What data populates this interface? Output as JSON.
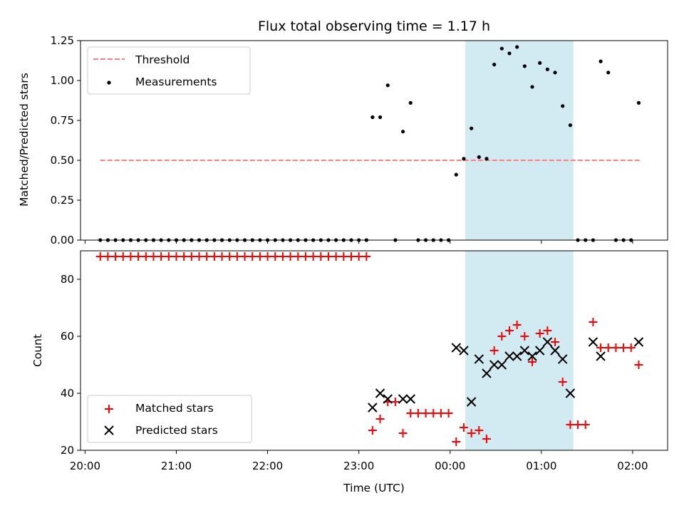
{
  "chart_data": [
    {
      "type": "scatter",
      "title": "Flux total observing time = 1.17 h",
      "ylabel": "Matched/Predicted stars",
      "xlabel": "",
      "ylim": [
        0,
        1.25
      ],
      "yticks": [
        "0.00",
        "0.25",
        "0.50",
        "0.75",
        "1.00",
        "1.25"
      ],
      "shaded_span": [
        "00:10",
        "01:21"
      ],
      "shade_color": "#add8e6",
      "legend_position": "upper left",
      "threshold": {
        "name": "Threshold",
        "value": 0.5,
        "x_range": [
          "20:10",
          "02:06"
        ],
        "color": "#ff7f7f"
      },
      "series": [
        {
          "name": "Measurements",
          "color": "#000000",
          "marker": "dot",
          "x": [
            "20:10",
            "20:15",
            "20:20",
            "20:25",
            "20:30",
            "20:35",
            "20:40",
            "20:45",
            "20:50",
            "20:55",
            "21:00",
            "21:05",
            "21:10",
            "21:15",
            "21:20",
            "21:25",
            "21:30",
            "21:35",
            "21:40",
            "21:45",
            "21:50",
            "21:55",
            "22:00",
            "22:05",
            "22:10",
            "22:15",
            "22:20",
            "22:25",
            "22:30",
            "22:35",
            "22:40",
            "22:45",
            "22:50",
            "22:55",
            "23:00",
            "23:05",
            "23:09",
            "23:14",
            "23:19",
            "23:24",
            "23:29",
            "23:34",
            "23:39",
            "23:44",
            "23:49",
            "23:54",
            "23:59",
            "00:04",
            "00:09",
            "00:14",
            "00:19",
            "00:24",
            "00:29",
            "00:34",
            "00:39",
            "00:44",
            "00:49",
            "00:54",
            "00:59",
            "01:04",
            "01:09",
            "01:14",
            "01:19",
            "01:24",
            "01:29",
            "01:34",
            "01:39",
            "01:44",
            "01:49",
            "01:54",
            "01:59",
            "02:04"
          ],
          "y": [
            0,
            0,
            0,
            0,
            0,
            0,
            0,
            0,
            0,
            0,
            0,
            0,
            0,
            0,
            0,
            0,
            0,
            0,
            0,
            0,
            0,
            0,
            0,
            0,
            0,
            0,
            0,
            0,
            0,
            0,
            0,
            0,
            0,
            0,
            0,
            0,
            0.77,
            0.77,
            0.97,
            0,
            0.68,
            0.86,
            0,
            0,
            0,
            0,
            0,
            0.41,
            0.51,
            0.7,
            0.52,
            0.51,
            1.1,
            1.2,
            1.17,
            1.21,
            1.09,
            0.96,
            1.11,
            1.07,
            1.05,
            0.84,
            0.72,
            0,
            0,
            0,
            1.12,
            1.05,
            0,
            0,
            0,
            0.86
          ]
        }
      ]
    },
    {
      "type": "scatter",
      "title": "",
      "ylabel": "Count",
      "xlabel": "Time (UTC)",
      "ylim": [
        20,
        90
      ],
      "yticks": [
        "20",
        "40",
        "60",
        "80"
      ],
      "xticks": [
        "20:00",
        "21:00",
        "22:00",
        "23:00",
        "00:00",
        "01:00",
        "02:00"
      ],
      "shaded_span": [
        "00:10",
        "01:21"
      ],
      "shade_color": "#add8e6",
      "legend_position": "lower left",
      "series": [
        {
          "name": "Matched stars",
          "color": "#ff0000",
          "marker": "plus",
          "x": [
            "20:10",
            "20:15",
            "20:20",
            "20:25",
            "20:30",
            "20:35",
            "20:40",
            "20:45",
            "20:50",
            "20:55",
            "21:00",
            "21:05",
            "21:10",
            "21:15",
            "21:20",
            "21:25",
            "21:30",
            "21:35",
            "21:40",
            "21:45",
            "21:50",
            "21:55",
            "22:00",
            "22:05",
            "22:10",
            "22:15",
            "22:20",
            "22:25",
            "22:30",
            "22:35",
            "22:40",
            "22:45",
            "22:50",
            "22:55",
            "23:00",
            "23:05",
            "23:09",
            "23:14",
            "23:19",
            "23:24",
            "23:29",
            "23:34",
            "23:39",
            "23:44",
            "23:49",
            "23:54",
            "23:59",
            "00:04",
            "00:09",
            "00:14",
            "00:19",
            "00:24",
            "00:29",
            "00:34",
            "00:39",
            "00:44",
            "00:49",
            "00:54",
            "00:59",
            "01:04",
            "01:09",
            "01:14",
            "01:19",
            "01:24",
            "01:29",
            "01:34",
            "01:39",
            "01:44",
            "01:49",
            "01:54",
            "01:59",
            "02:04"
          ],
          "y": [
            88,
            88,
            88,
            88,
            88,
            88,
            88,
            88,
            88,
            88,
            88,
            88,
            88,
            88,
            88,
            88,
            88,
            88,
            88,
            88,
            88,
            88,
            88,
            88,
            88,
            88,
            88,
            88,
            88,
            88,
            88,
            88,
            88,
            88,
            88,
            88,
            27,
            31,
            37,
            37,
            26,
            33,
            33,
            33,
            33,
            33,
            33,
            23,
            28,
            26,
            27,
            24,
            55,
            60,
            62,
            64,
            60,
            51,
            61,
            62,
            58,
            44,
            29,
            29,
            29,
            65,
            56,
            56,
            56,
            56,
            56,
            50
          ]
        },
        {
          "name": "Predicted stars",
          "color": "#000000",
          "marker": "x",
          "x": [
            "23:09",
            "23:14",
            "23:19",
            "23:29",
            "23:34",
            "00:04",
            "00:09",
            "00:14",
            "00:19",
            "00:24",
            "00:29",
            "00:34",
            "00:39",
            "00:44",
            "00:49",
            "00:54",
            "00:59",
            "01:04",
            "01:09",
            "01:14",
            "01:19",
            "01:34",
            "01:39",
            "02:04"
          ],
          "y": [
            35,
            40,
            38,
            38,
            38,
            56,
            55,
            37,
            52,
            47,
            50,
            50,
            53,
            53,
            55,
            53,
            55,
            58,
            55,
            52,
            40,
            58,
            53,
            58
          ]
        }
      ]
    }
  ]
}
